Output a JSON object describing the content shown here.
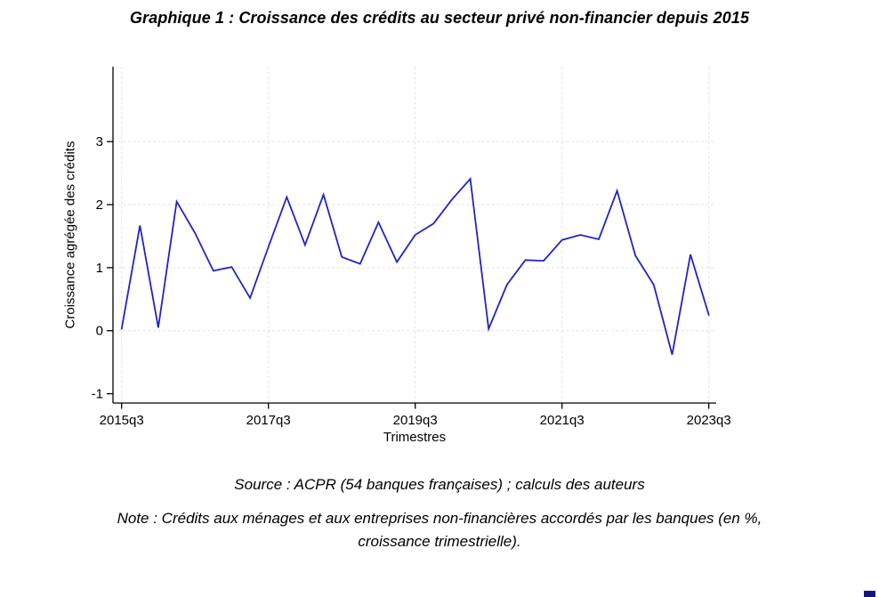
{
  "page": {
    "title": "Graphique 1 : Croissance des crédits au secteur privé non-financier depuis 2015",
    "source_line": "Source : ACPR (54 banques françaises) ; calculs des auteurs",
    "note": {
      "line1": "Note : Crédits aux ménages et aux entreprises non-financières accordés par les banques (en %,",
      "line2": "croissance trimestrielle)."
    }
  },
  "chart_data": {
    "type": "line",
    "title": "Graphique 1 : Croissance des crédits au secteur privé non-financier depuis 2015",
    "xlabel": "Trimestres",
    "ylabel": "Croissance agrégée des crédits",
    "categories": [
      "2015q3",
      "2015q4",
      "2016q1",
      "2016q2",
      "2016q3",
      "2016q4",
      "2017q1",
      "2017q2",
      "2017q3",
      "2017q4",
      "2018q1",
      "2018q2",
      "2018q3",
      "2018q4",
      "2019q1",
      "2019q2",
      "2019q3",
      "2019q4",
      "2020q1",
      "2020q2",
      "2020q3",
      "2020q4",
      "2021q1",
      "2021q2",
      "2021q3",
      "2021q4",
      "2022q1",
      "2022q2",
      "2022q3",
      "2022q4",
      "2023q1",
      "2023q2",
      "2023q3"
    ],
    "values": [
      0.03,
      1.67,
      0.05,
      2.05,
      1.55,
      0.95,
      1.01,
      0.52,
      1.33,
      2.12,
      1.36,
      2.16,
      1.17,
      1.06,
      1.72,
      1.09,
      1.52,
      1.7,
      2.08,
      2.41,
      0.03,
      0.73,
      1.12,
      1.11,
      1.44,
      1.52,
      1.45,
      2.22,
      1.19,
      0.73,
      -0.38,
      1.21,
      0.25
    ],
    "x_tick_labels": [
      "2015q3",
      "2017q3",
      "2019q3",
      "2021q3",
      "2023q3"
    ],
    "x_tick_indices": [
      0,
      8,
      16,
      24,
      32
    ],
    "y_tick_labels": [
      "-1",
      "0",
      "1",
      "2",
      "3"
    ],
    "y_ticks": [
      -1,
      0,
      1,
      2,
      3
    ],
    "grid_y_values": [
      0,
      1,
      2,
      3
    ],
    "ylim": [
      -1.2,
      4.2
    ],
    "grid": "dashed light-gray; horizontal at 0..3, vertical at labeled quarters",
    "legend": "none",
    "line_color": "#2222c8",
    "axis_color": "#000000",
    "grid_color": "#e2e2e2"
  }
}
